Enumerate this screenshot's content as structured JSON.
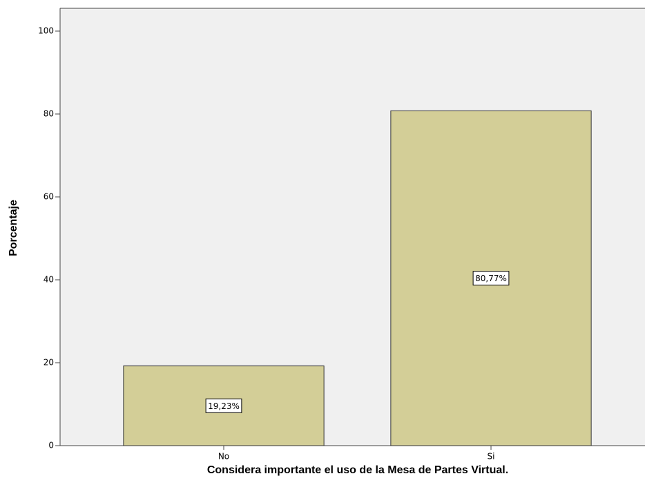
{
  "chart_data": {
    "type": "bar",
    "categories": [
      "No",
      "Si"
    ],
    "values": [
      19.23,
      80.77
    ],
    "value_labels": [
      "19,23%",
      "80,77%"
    ],
    "color": "#d3ce97",
    "ylim": [
      0,
      105.5
    ],
    "yticks": [
      0,
      20,
      40,
      60,
      80,
      100
    ],
    "y_label": "Porcentaje",
    "x_label": "Considera importante el uso de la Mesa de Partes Virtual."
  }
}
